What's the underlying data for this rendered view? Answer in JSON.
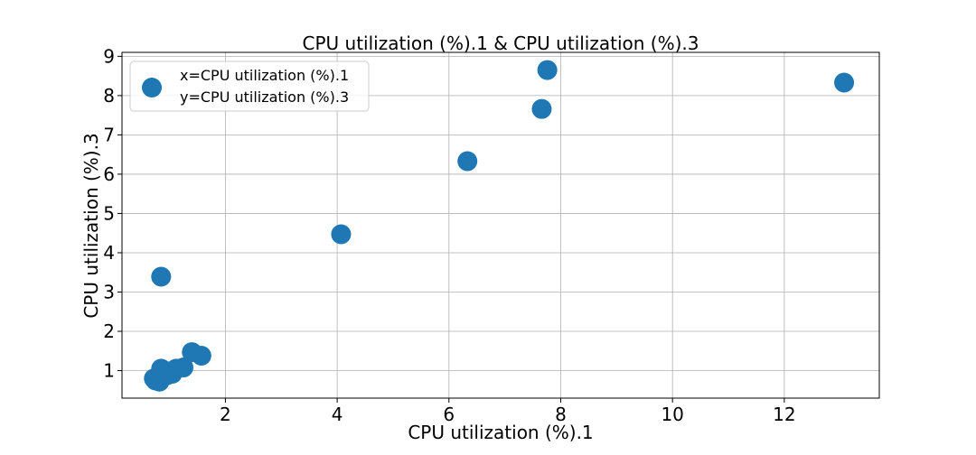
{
  "chart_data": {
    "type": "scatter",
    "title": "CPU utilization (%).1 & CPU utilization (%).3",
    "xlabel": "CPU utilization (%).1",
    "ylabel": "CPU utilization (%).3",
    "xlim": [
      0.15,
      13.7
    ],
    "ylim": [
      0.3,
      9.1
    ],
    "xticks": [
      2,
      4,
      6,
      8,
      10,
      12
    ],
    "yticks": [
      1,
      2,
      3,
      4,
      5,
      6,
      7,
      8,
      9
    ],
    "grid": true,
    "legend": {
      "position": "top-left",
      "entries": [
        "x=CPU utilization (%).1",
        "y=CPU utilization (%).3"
      ]
    },
    "marker_color": "#1f77b4",
    "points": [
      {
        "x": 13.07,
        "y": 8.33
      },
      {
        "x": 7.76,
        "y": 8.65
      },
      {
        "x": 7.66,
        "y": 7.66
      },
      {
        "x": 6.33,
        "y": 6.33
      },
      {
        "x": 4.07,
        "y": 4.47
      },
      {
        "x": 0.85,
        "y": 3.39
      },
      {
        "x": 1.4,
        "y": 1.47
      },
      {
        "x": 1.57,
        "y": 1.38
      },
      {
        "x": 1.25,
        "y": 1.08
      },
      {
        "x": 1.12,
        "y": 1.05
      },
      {
        "x": 1.05,
        "y": 0.92
      },
      {
        "x": 0.98,
        "y": 0.98
      },
      {
        "x": 0.85,
        "y": 1.05
      },
      {
        "x": 0.9,
        "y": 0.85
      },
      {
        "x": 0.8,
        "y": 0.82
      },
      {
        "x": 0.72,
        "y": 0.8
      },
      {
        "x": 0.75,
        "y": 0.75
      },
      {
        "x": 0.82,
        "y": 0.72
      },
      {
        "x": 0.95,
        "y": 0.88
      },
      {
        "x": 1.08,
        "y": 1.0
      }
    ]
  }
}
